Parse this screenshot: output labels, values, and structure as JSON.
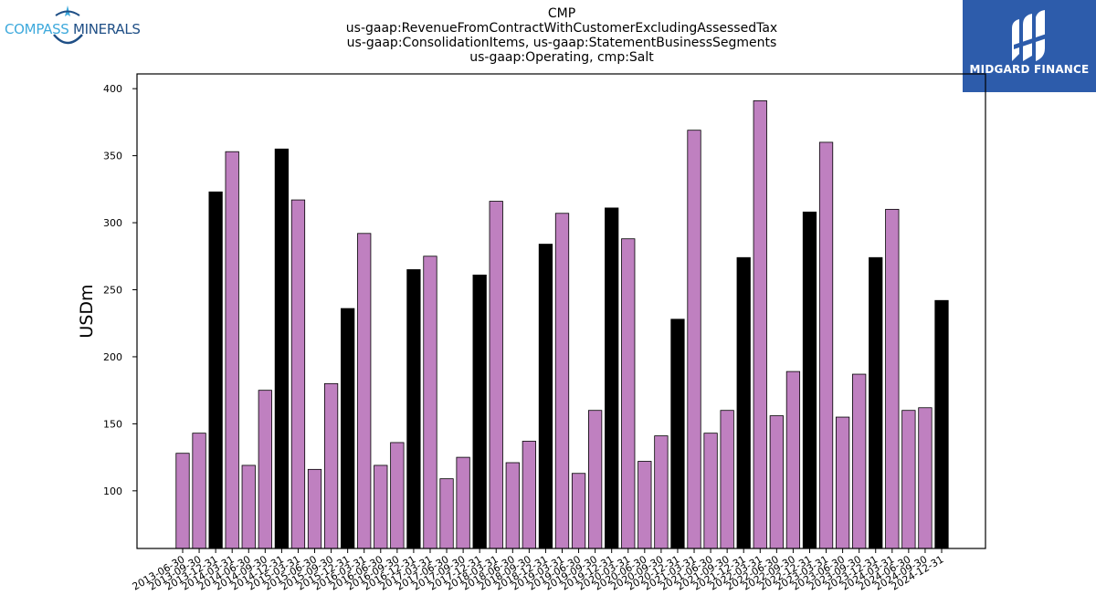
{
  "logos": {
    "left": {
      "text_part1": "COMPASS",
      "text_part2": " MINERALS"
    },
    "right": {
      "text": "MIDGARD FINANCE"
    }
  },
  "colors": {
    "highlight": "#000000",
    "bar": "#bf80c0",
    "edge": "#000000"
  },
  "chart_data": {
    "type": "bar",
    "title": [
      "CMP",
      "us-gaap:RevenueFromContractWithCustomerExcludingAssessedTax",
      "us-gaap:ConsolidationItems, us-gaap:StatementBusinessSegments",
      "us-gaap:Operating, cmp:Salt"
    ],
    "xlabel": "",
    "ylabel": "USDm",
    "ylim": [
      57,
      411
    ],
    "yticks": [
      100,
      150,
      200,
      250,
      300,
      350,
      400
    ],
    "grid": false,
    "categories": [
      "2013-06-30",
      "2013-09-30",
      "2013-12-31",
      "2014-03-31",
      "2014-06-30",
      "2014-09-30",
      "2014-12-31",
      "2015-03-31",
      "2015-06-30",
      "2015-09-30",
      "2015-12-31",
      "2016-03-31",
      "2016-06-30",
      "2016-09-30",
      "2016-12-31",
      "2017-03-31",
      "2017-06-30",
      "2017-09-30",
      "2017-12-31",
      "2018-03-31",
      "2018-06-30",
      "2018-09-30",
      "2018-12-31",
      "2019-03-31",
      "2019-06-30",
      "2019-09-30",
      "2019-12-31",
      "2020-03-31",
      "2020-06-30",
      "2020-09-30",
      "2020-12-31",
      "2021-03-31",
      "2021-06-30",
      "2021-09-30",
      "2021-12-31",
      "2022-03-31",
      "2022-06-30",
      "2022-09-30",
      "2022-12-31",
      "2023-03-31",
      "2023-06-30",
      "2023-09-30",
      "2023-12-31",
      "2024-03-31",
      "2024-06-30",
      "2024-09-30",
      "2024-12-31"
    ],
    "values": [
      128,
      143,
      323,
      353,
      119,
      175,
      355,
      317,
      116,
      180,
      236,
      292,
      119,
      136,
      265,
      275,
      109,
      125,
      261,
      316,
      121,
      137,
      284,
      307,
      113,
      160,
      311,
      288,
      122,
      141,
      228,
      369,
      143,
      160,
      274,
      391,
      156,
      189,
      308,
      360,
      155,
      187,
      274,
      310,
      160,
      162,
      242
    ],
    "highlighted": [
      false,
      false,
      true,
      false,
      false,
      false,
      true,
      false,
      false,
      false,
      true,
      false,
      false,
      false,
      true,
      false,
      false,
      false,
      true,
      false,
      false,
      false,
      true,
      false,
      false,
      false,
      true,
      false,
      false,
      false,
      true,
      false,
      false,
      false,
      true,
      false,
      false,
      false,
      true,
      false,
      false,
      false,
      true,
      false,
      false,
      false,
      true
    ]
  }
}
